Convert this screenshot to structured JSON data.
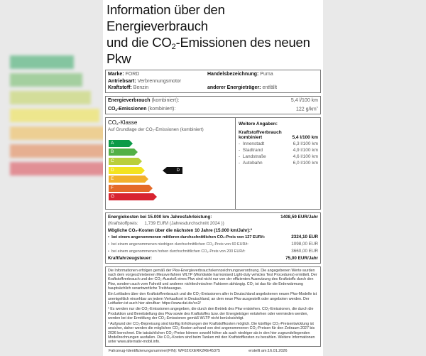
{
  "title": {
    "line1": "Information über den Energieverbrauch",
    "line2_pre": "und die CO",
    "line2_sub": "2",
    "line2_post": "-Emissionen des neuen Pkw"
  },
  "vehicle": {
    "marke_label": "Marke:",
    "marke": "FORD",
    "handel_label": "Handelsbezeichnung:",
    "handel": "Puma",
    "antrieb_label": "Antriebsart:",
    "antrieb": "Verbrennungsmotor",
    "kraftstoff_label": "Kraftstoff:",
    "kraftstoff": "Benzin",
    "anderer_label": "anderer Energieträger:",
    "anderer": "entfällt"
  },
  "consumption": {
    "energie_label": "Energieverbrauch",
    "energie_suffix": "(kombiniert):",
    "energie_value": "5,4 l/100 km",
    "co2_label_pre": "CO",
    "co2_label_post": "-Emissionen",
    "co2_suffix": "(kombiniert):",
    "co2_value": "122 g/km",
    "co2_footnote": "1"
  },
  "co2_class": {
    "heading_pre": "CO",
    "heading_post": "-Klasse",
    "subheading": "Auf Grundlage der CO₂-Emissionen (kombiniert)",
    "classes": [
      {
        "label": "A",
        "color": "#0b9a48"
      },
      {
        "label": "B",
        "color": "#52b046"
      },
      {
        "label": "C",
        "color": "#b9cf3b"
      },
      {
        "label": "D",
        "color": "#f3e31f"
      },
      {
        "label": "E",
        "color": "#f2b02c"
      },
      {
        "label": "F",
        "color": "#e46a28"
      },
      {
        "label": "G",
        "color": "#d82330"
      }
    ],
    "current": "D"
  },
  "weitere": {
    "heading": "Weitere Angaben:",
    "kraftstoff_line1": "Kraftstoffverbrauch",
    "kraftstoff_line2": "kombiniert",
    "kombiniert_value": "5,4 l/100 km",
    "items": [
      {
        "label": "Innenstadt",
        "value": "6,3 l/100 km"
      },
      {
        "label": "Stadtrand",
        "value": "4,9 l/100 km"
      },
      {
        "label": "Landstraße",
        "value": "4,6 l/100 km"
      },
      {
        "label": "Autobahn",
        "value": "6,0 l/100 km"
      }
    ]
  },
  "costs": {
    "energiekosten_label": "Energiekosten bei 15.000 km Jahresfahrleistung:",
    "energiekosten_value": "1408,59 EUR/Jahr",
    "preis_label": "(Kraftstoffpreis:",
    "preis_value": "1,739 EUR/l (Jahresdurchschnitt 2024 ))",
    "co2_kosten_heading": "Mögliche CO₂-Kosten über die nächsten 10 Jahre (15.000 km/Jahr):²",
    "scenarios": [
      {
        "label": "bei einem angenommenen mittleren durchschnittlichen CO₂-Preis von 127 EUR/t:",
        "value": "2324,10 EUR"
      },
      {
        "label": "bei einem angenommenen niedrigen durchschnittlichen CO₂-Preis von 60 EUR/t:",
        "value": "1098,00 EUR"
      },
      {
        "label": "bei einem angenommenen hohen durchschnittlichen CO₂-Preis von 200 EUR/t:",
        "value": "3660,00 EUR"
      }
    ],
    "steuer_label": "Kraftfahrzeugsteuer:",
    "steuer_value": "75,00 EUR/Jahr"
  },
  "fineprint": {
    "p1": "Die Informationen erfolgen gemäß der Pkw-Energieverbrauchskennzeichnungsverordnung. Die angegebenen Werte wurden nach dem vorgeschriebenen Messverfahren WLTP (Worldwide harmonised Light-duty vehicles Test Procedures) ermittelt. Der Kraftstoffverbrauch und der CO₂-Ausstoß eines Pkw sind nicht nur von der effizienten Ausnutzung des Kraftstoffs durch den Pkw, sondern auch vom Fahrstil und anderen nichttechnischen Faktoren abhängig. CO₂ ist das für die Erderwärmung hauptsächlich verantwortliche Treibhausgas.",
    "p2": "Ein Leitfaden über den Kraftstoffverbrauch und die CO₂-Emissionen aller in Deutschland angebotenen neuen Pkw-Modelle ist unentgeltlich einsehbar an jedem Verkaufsort in Deutschland, an dem neue Pkw ausgestellt oder angeboten werden. Der Leitfaden ist auch hier abrufbar: https://www.dat.de/co2/",
    "p3": "¹ Es werden nur die CO₂-Emissionen angegeben, die durch den Betrieb des Pkw entstehen. CO₂-Emissionen, die durch die Produktion und Bereitstellung des Pkw sowie des Kraftstoffes bzw. der Energieträger entstehen oder vermieden werden, werden bei der Ermittlung der CO₂-Emissionen gemäß WLTP nicht berücksichtigt.",
    "p4": "² Aufgrund der CO₂-Bepreisung sind künftig Erhöhungen der Kraftstoffkosten möglich. Die künftige CO₂-Preisentwicklung ist unsicher, daher werden die möglichen CO₂-Kosten anhand von drei angenommenen CO₂-Preisen für den Zeitraum 2027 bis 2036 berechnet. Die tatsächlichen CO₂-Preise können sowohl höher als auch niedriger als in den hier zugrundeliegenden Modellrechnungen ausfallen. Die CO₂-Kosten sind beim Tanken mit den Kraftstoffkosten zu bezahlen. Weitere Informationen unter www.alternativ-mobil.info."
  },
  "footer": {
    "fin": "Fahrzeug-Identifizierungsnummer(FIN): WF02XXERK2RE45375",
    "erstellt": "erstellt am:16.01.2026"
  }
}
